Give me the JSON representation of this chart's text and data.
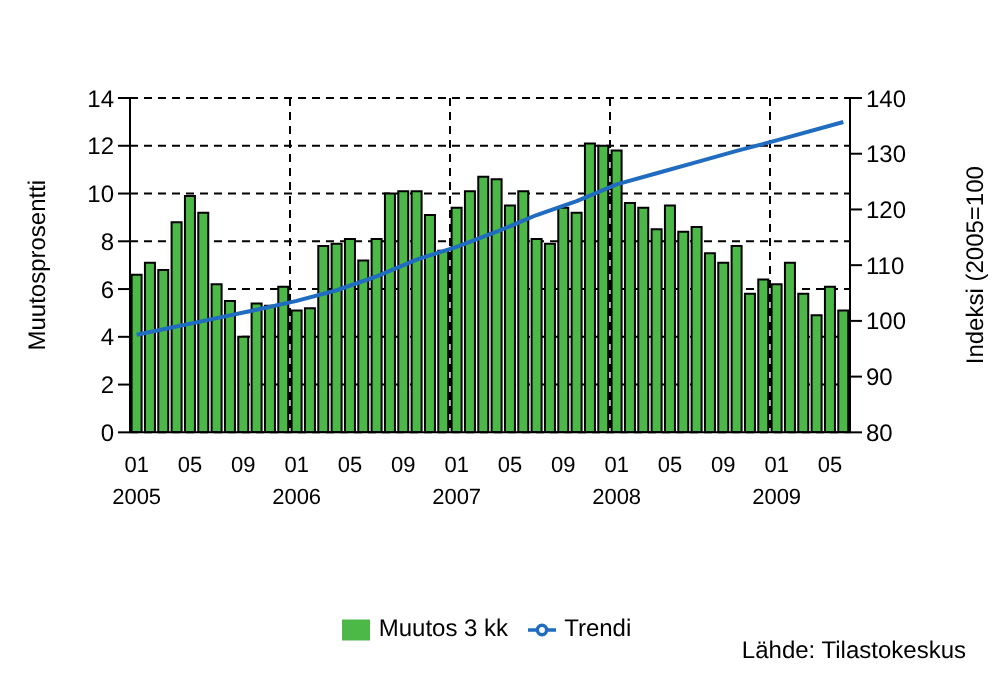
{
  "chart_data": {
    "type": "bar",
    "ylabel": "Muutosprosentti",
    "y2label": "Indeksi (2005=100",
    "categories": [
      "01\n2005",
      null,
      null,
      null,
      "05",
      null,
      null,
      null,
      "09",
      null,
      null,
      null,
      "01\n2006",
      null,
      null,
      null,
      "05",
      null,
      null,
      null,
      "09",
      null,
      null,
      null,
      "01\n2007",
      null,
      null,
      null,
      "05",
      null,
      null,
      null,
      "09",
      null,
      null,
      null,
      "01\n2008",
      null,
      null,
      null,
      "05",
      null,
      null,
      null,
      "09",
      null,
      null,
      null,
      "01\n2009",
      null,
      null,
      null,
      "05",
      null
    ],
    "series": [
      {
        "name": "Muutos 3 kk",
        "color": "#4cb848",
        "values": [
          6.6,
          7.1,
          6.8,
          8.8,
          9.9,
          9.2,
          6.2,
          5.5,
          4.0,
          5.4,
          5.3,
          6.1,
          5.1,
          5.2,
          7.8,
          7.9,
          8.1,
          7.2,
          8.1,
          10.0,
          10.1,
          10.1,
          9.1,
          7.6,
          9.4,
          10.1,
          10.7,
          10.6,
          9.5,
          10.1,
          8.1,
          7.9,
          9.4,
          9.2,
          12.1,
          12.0,
          11.8,
          9.6,
          9.4,
          8.5,
          9.5,
          8.4,
          8.6,
          7.5,
          7.1,
          7.8,
          5.8,
          6.4,
          6.2,
          7.1,
          5.8,
          4.9,
          6.1,
          5.1
        ]
      },
      {
        "name": "Trendi",
        "type": "line",
        "axis": "y2",
        "color": "#1f6cc0",
        "values": [
          97.5,
          null,
          null,
          99,
          null,
          null,
          100.5,
          null,
          null,
          102,
          null,
          null,
          103.6,
          null,
          null,
          105.5,
          null,
          null,
          108,
          null,
          null,
          111,
          null,
          null,
          113.3,
          null,
          null,
          116,
          null,
          null,
          119,
          null,
          null,
          121.5,
          null,
          null,
          124.5,
          null,
          null,
          126.5,
          null,
          null,
          128.5,
          null,
          null,
          130.5,
          null,
          null,
          132.4,
          null,
          null,
          null,
          null,
          135.7
        ]
      }
    ],
    "ylim": [
      0,
      14
    ],
    "yticks": [
      0,
      2,
      4,
      6,
      8,
      10,
      12,
      14
    ],
    "y2lim": [
      80,
      140
    ],
    "y2ticks": [
      80,
      90,
      100,
      110,
      120,
      130,
      140
    ],
    "grid": true,
    "legend": "bottom",
    "marker": "none",
    "line_style": "solid",
    "annotations": [
      "Lähde: Tilastokeskus"
    ]
  }
}
